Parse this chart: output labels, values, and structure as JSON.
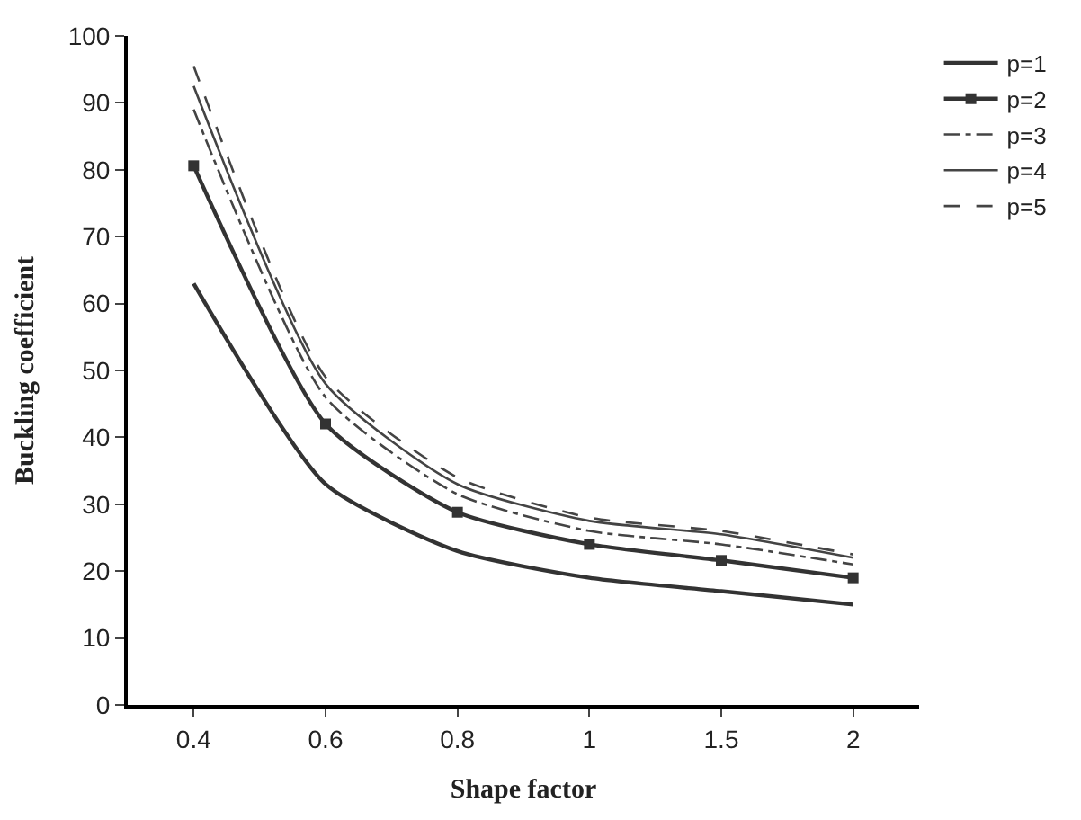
{
  "chart_data": {
    "type": "line",
    "xlabel": "Shape factor",
    "ylabel": "Buckling coefficient",
    "categories": [
      "0.4",
      "0.6",
      "0.8",
      "1",
      "1.5",
      "2"
    ],
    "ylim": [
      0,
      100
    ],
    "yticks": [
      0,
      10,
      20,
      30,
      40,
      50,
      60,
      70,
      80,
      90,
      100
    ],
    "legend": "right",
    "series": [
      {
        "name": "p=1",
        "color": "#333333",
        "line_style": "solid",
        "marker": "none",
        "values": [
          63,
          33,
          23,
          19,
          17,
          15
        ]
      },
      {
        "name": "p=2",
        "color": "#333333",
        "line_style": "solid",
        "marker": "square",
        "values": [
          80.6,
          42,
          28.8,
          24,
          21.6,
          19
        ]
      },
      {
        "name": "p=3",
        "color": "#444444",
        "line_style": "dashdot",
        "marker": "none",
        "values": [
          89,
          46,
          31.5,
          26,
          24,
          21
        ]
      },
      {
        "name": "p=4",
        "color": "#444444",
        "line_style": "solid",
        "marker": "none",
        "values": [
          92.5,
          48,
          33,
          27.5,
          25.5,
          22
        ]
      },
      {
        "name": "p=5",
        "color": "#444444",
        "line_style": "dashed",
        "marker": "none",
        "values": [
          95.5,
          49,
          34,
          28,
          26,
          22.5
        ]
      }
    ]
  }
}
